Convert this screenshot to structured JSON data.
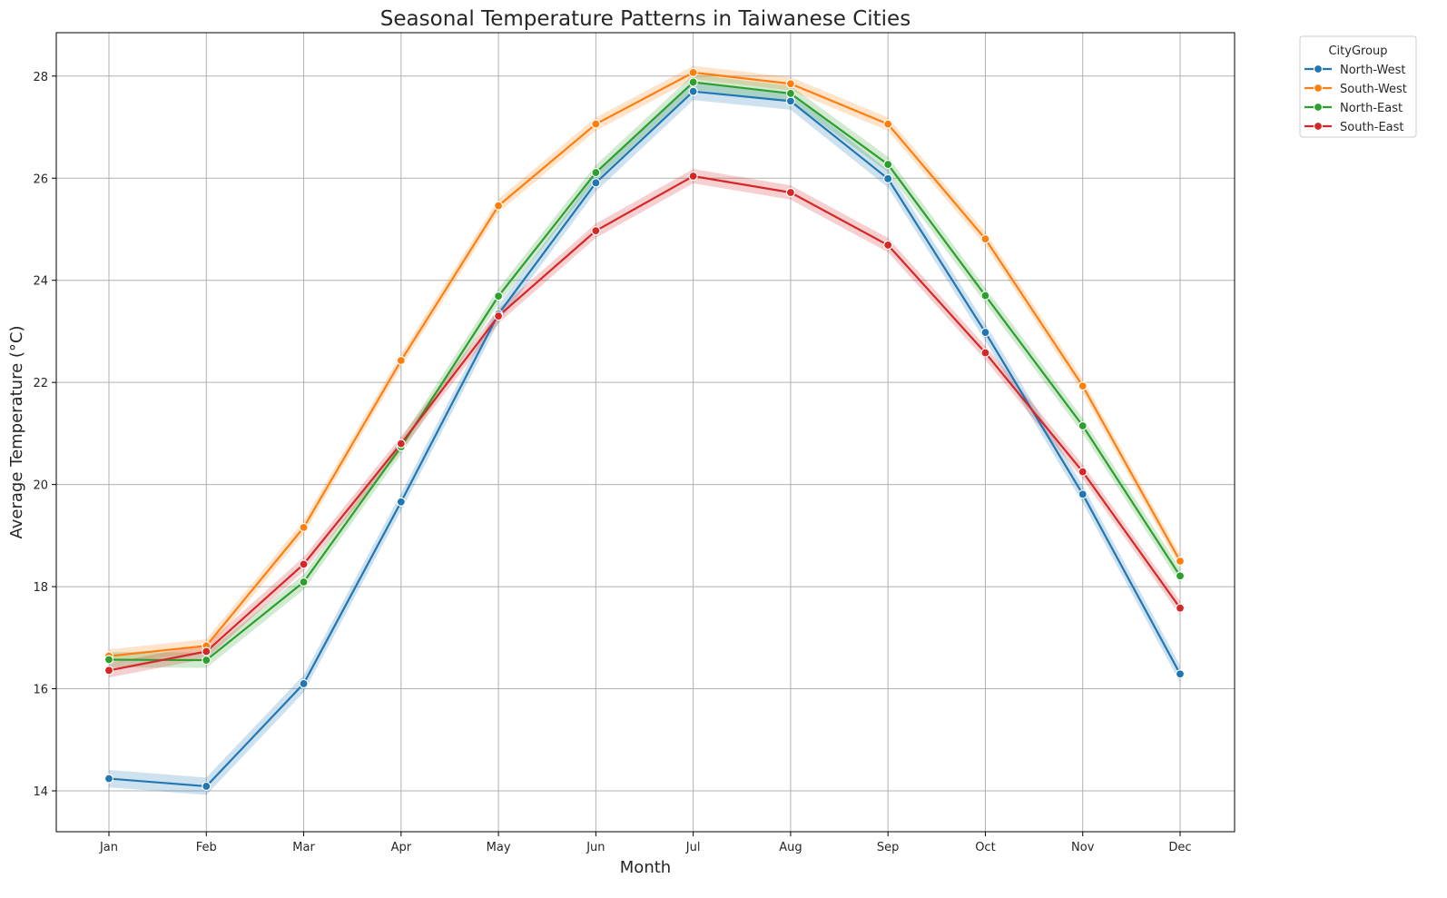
{
  "chart_data": {
    "type": "line",
    "title": "Seasonal Temperature Patterns in Taiwanese Cities",
    "xlabel": "Month",
    "ylabel": "Average Temperature (°C)",
    "categories": [
      "Jan",
      "Feb",
      "Mar",
      "Apr",
      "May",
      "Jun",
      "Jul",
      "Aug",
      "Sep",
      "Oct",
      "Nov",
      "Dec"
    ],
    "ylim": [
      13.2,
      28.85
    ],
    "yticks": [
      14,
      16,
      18,
      20,
      22,
      24,
      26,
      28
    ],
    "grid": true,
    "legend": {
      "title": "CityGroup",
      "placement": "outside-top-right"
    },
    "series": [
      {
        "name": "North-West",
        "color": "#1f77b4",
        "band": 0.17,
        "values": [
          14.24,
          14.09,
          16.1,
          19.66,
          23.34,
          25.91,
          27.7,
          27.51,
          25.99,
          22.98,
          19.81,
          16.29
        ]
      },
      {
        "name": "South-West",
        "color": "#ff7f0e",
        "band": 0.13,
        "values": [
          16.64,
          16.84,
          19.16,
          22.43,
          25.46,
          27.06,
          28.07,
          27.85,
          27.06,
          24.81,
          21.93,
          18.5
        ]
      },
      {
        "name": "North-East",
        "color": "#2ca02c",
        "band": 0.15,
        "values": [
          16.57,
          16.56,
          18.09,
          20.74,
          23.69,
          26.11,
          27.88,
          27.66,
          26.27,
          23.7,
          21.15,
          18.21
        ]
      },
      {
        "name": "South-East",
        "color": "#d62728",
        "band": 0.14,
        "values": [
          16.36,
          16.73,
          18.44,
          20.8,
          23.3,
          24.97,
          26.04,
          25.72,
          24.69,
          22.58,
          20.25,
          17.58
        ]
      }
    ]
  }
}
